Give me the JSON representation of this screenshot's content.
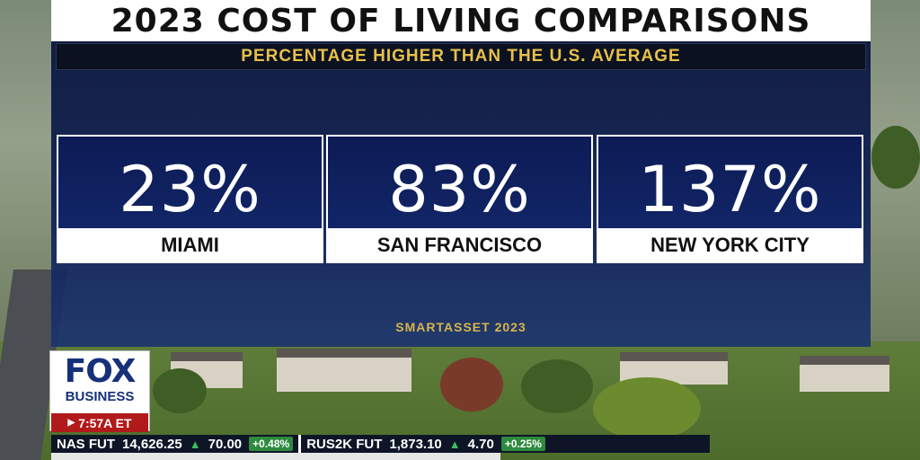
{
  "header": {
    "title": "2023 COST OF LIVING COMPARISONS",
    "subtitle": "PERCENTAGE HIGHER THAN THE U.S. AVERAGE"
  },
  "cards": [
    {
      "value": "23%",
      "city": "MIAMI"
    },
    {
      "value": "83%",
      "city": "SAN FRANCISCO"
    },
    {
      "value": "137%",
      "city": "NEW YORK CITY"
    }
  ],
  "source": "SMARTASSET 2023",
  "network": {
    "logo_top": "FOX",
    "logo_bottom": "BUSINESS",
    "time": "7:57A ET"
  },
  "ticker": {
    "items": [
      {
        "symbol": "NAS FUT",
        "price": "14,626.25",
        "change": "70.00",
        "pct": "+0.48%"
      },
      {
        "symbol": "RUS2K FUT",
        "price": "1,873.10",
        "change": "4.70",
        "pct": "+0.25%"
      }
    ]
  },
  "colors": {
    "accent_gold": "#e8c04a",
    "panel_navy": "#0d1b55",
    "fox_red": "#b11a1a",
    "gain_green": "#3ac05a"
  }
}
